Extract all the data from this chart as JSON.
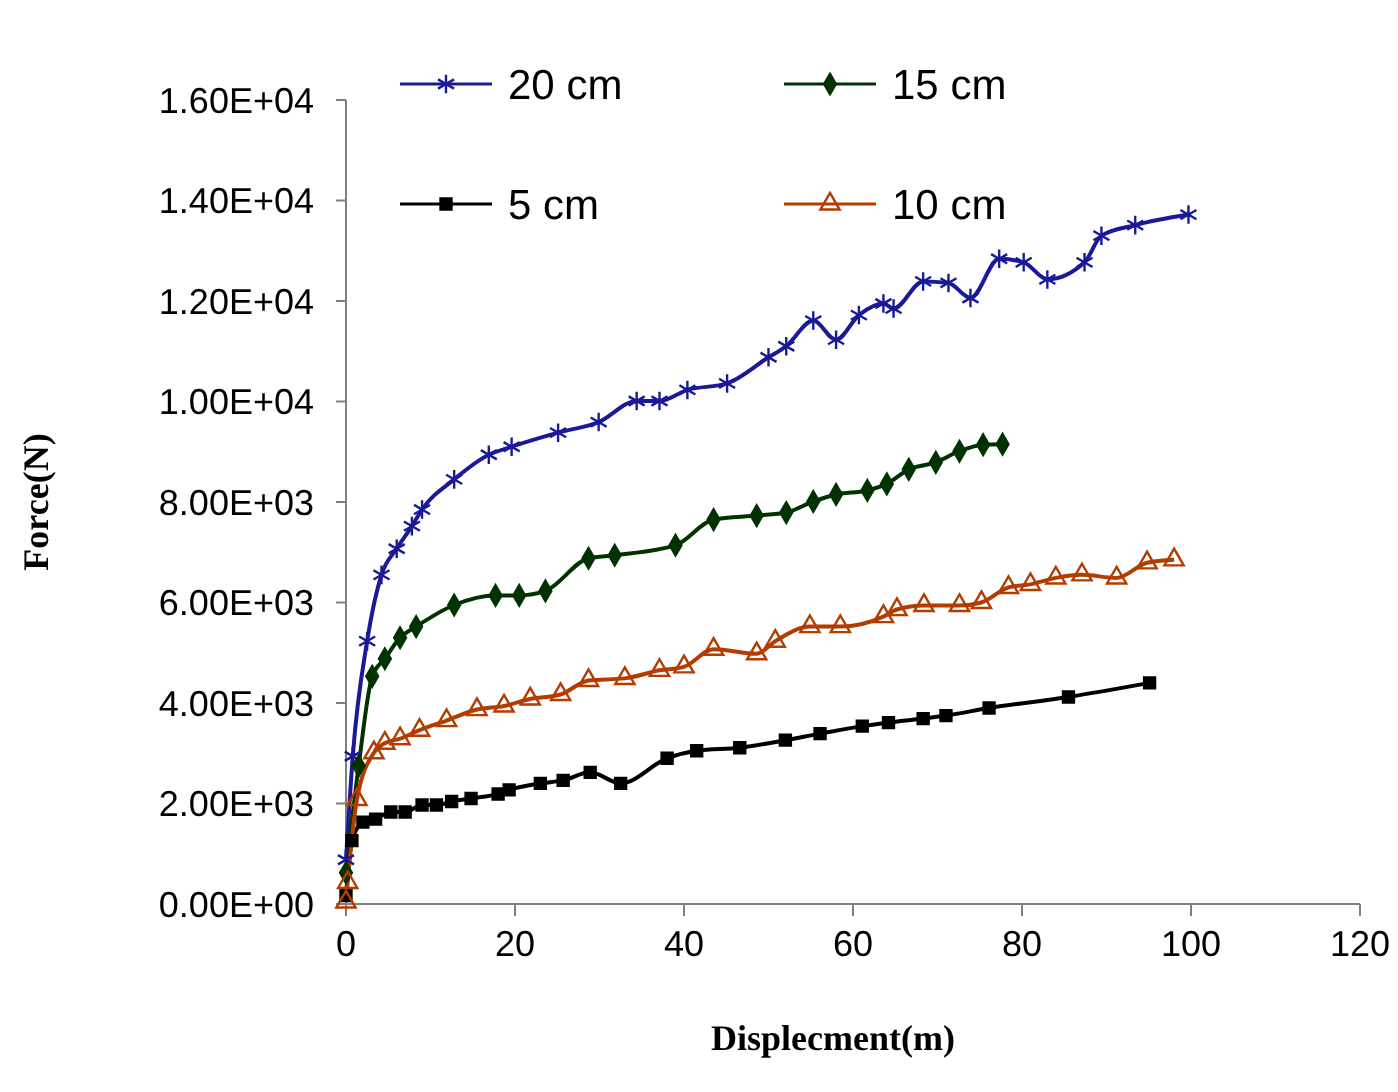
{
  "chart_data": {
    "type": "line",
    "xlabel": "Displecment(m)",
    "ylabel": "Force(N)",
    "xlim": [
      0,
      120
    ],
    "xticks": [
      0,
      20,
      40,
      60,
      80,
      100,
      120
    ],
    "ylim": [
      0,
      16000
    ],
    "yticks": [
      {
        "value": 0,
        "label": "0.00E+00"
      },
      {
        "value": 2000,
        "label": "2.00E+03"
      },
      {
        "value": 4000,
        "label": "4.00E+03"
      },
      {
        "value": 6000,
        "label": "6.00E+03"
      },
      {
        "value": 8000,
        "label": "8.00E+03"
      },
      {
        "value": 10000,
        "label": "1.00E+04"
      },
      {
        "value": 12000,
        "label": "1.20E+04"
      },
      {
        "value": 14000,
        "label": "1.40E+04"
      },
      {
        "value": 16000,
        "label": "1.60E+04"
      }
    ],
    "grid": false,
    "legend": "top left",
    "line_style": "solid",
    "series": [
      {
        "name": "20 cm",
        "color": "#1a1a99",
        "marker": "cross",
        "x": [
          0,
          0.8,
          2.5,
          4.2,
          6,
          7.8,
          9,
          12.8,
          16.9,
          19.6,
          25.1,
          29.9,
          34.4,
          37.1,
          40.4,
          45.1,
          50,
          52.1,
          55.3,
          58,
          60.7,
          63.6,
          64.8,
          68.3,
          71.3,
          73.9,
          77.3,
          80.2,
          83,
          87.4,
          89.4,
          93.4,
          99.7
        ],
        "values": [
          880,
          2940,
          5230,
          6550,
          7070,
          7520,
          7850,
          8450,
          8940,
          9100,
          9380,
          9590,
          10010,
          10010,
          10230,
          10360,
          10880,
          11100,
          11610,
          11230,
          11720,
          11950,
          11850,
          12390,
          12360,
          12060,
          12840,
          12770,
          12430,
          12770,
          13300,
          13510,
          13720
        ]
      },
      {
        "name": "15 cm",
        "color": "#003300",
        "marker": "diamond",
        "x": [
          0,
          1.5,
          3.1,
          4.6,
          6.4,
          8.3,
          12.8,
          17.7,
          20.5,
          23.6,
          28.7,
          31.8,
          39,
          43.5,
          48.6,
          52.1,
          55.3,
          58,
          61.7,
          64,
          66.6,
          69.8,
          72.6,
          75.4,
          77.7
        ],
        "values": [
          620,
          2750,
          4530,
          4880,
          5300,
          5520,
          5950,
          6140,
          6140,
          6230,
          6880,
          6940,
          7140,
          7650,
          7730,
          7790,
          8010,
          8150,
          8230,
          8360,
          8650,
          8790,
          9010,
          9140,
          9150
        ]
      },
      {
        "name": "5 cm",
        "color": "#000000",
        "marker": "square",
        "x": [
          0,
          0.7,
          2,
          3.5,
          5.3,
          7,
          9,
          10.7,
          12.5,
          14.8,
          18,
          19.3,
          23,
          25.7,
          28.9,
          32.5,
          38,
          41.5,
          46.6,
          52,
          56.1,
          61.1,
          64.2,
          68.3,
          71,
          76.1,
          85.5,
          95.1
        ],
        "values": [
          170,
          1260,
          1630,
          1690,
          1830,
          1830,
          1970,
          1970,
          2040,
          2100,
          2190,
          2270,
          2400,
          2460,
          2620,
          2400,
          2900,
          3050,
          3110,
          3260,
          3390,
          3540,
          3610,
          3690,
          3750,
          3900,
          4120,
          4400
        ]
      },
      {
        "name": "10 cm",
        "color": "#b33c00",
        "marker": "triangle",
        "x": [
          0,
          0.2,
          1.3,
          3.3,
          4.6,
          6.4,
          8.7,
          11.9,
          15.5,
          18.7,
          21.8,
          25.4,
          28.7,
          33,
          37.1,
          40,
          43.5,
          48.6,
          50.8,
          54.9,
          58.5,
          63.6,
          65.2,
          68.4,
          72.6,
          75.2,
          78.4,
          81,
          84,
          87.1,
          91.2,
          94.8,
          98
        ],
        "values": [
          40,
          430,
          2080,
          3010,
          3200,
          3290,
          3460,
          3650,
          3870,
          3940,
          4080,
          4170,
          4450,
          4490,
          4650,
          4720,
          5070,
          4980,
          5230,
          5520,
          5520,
          5720,
          5860,
          5940,
          5940,
          6000,
          6300,
          6360,
          6490,
          6550,
          6490,
          6790,
          6850
        ]
      }
    ]
  }
}
